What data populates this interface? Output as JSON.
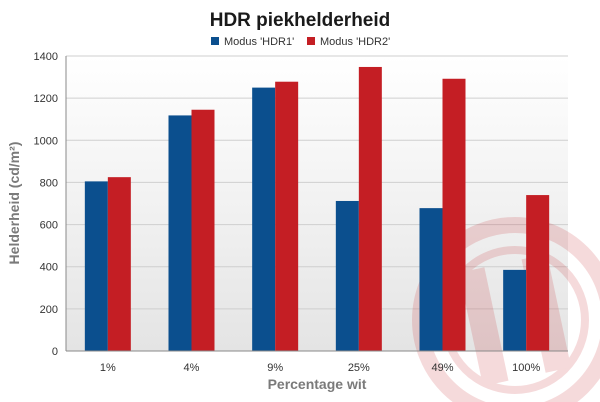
{
  "chart_data": {
    "type": "bar",
    "title": "HDR piekhelderheid",
    "xlabel": "Percentage wit",
    "ylabel": "Helderheid (cd/m²)",
    "categories": [
      "1%",
      "4%",
      "9%",
      "25%",
      "49%",
      "100%"
    ],
    "series": [
      {
        "name": "Modus 'HDR1'",
        "color": "#0b4f8e",
        "values": [
          805,
          1118,
          1250,
          712,
          678,
          385
        ]
      },
      {
        "name": "Modus 'HDR2'",
        "color": "#c41e24",
        "values": [
          825,
          1145,
          1278,
          1348,
          1292,
          740
        ]
      }
    ],
    "ylim": [
      0,
      1400
    ],
    "yticks": [
      0,
      200,
      400,
      600,
      800,
      1000,
      1200,
      1400
    ],
    "grid": true,
    "legend_position": "top-center"
  }
}
